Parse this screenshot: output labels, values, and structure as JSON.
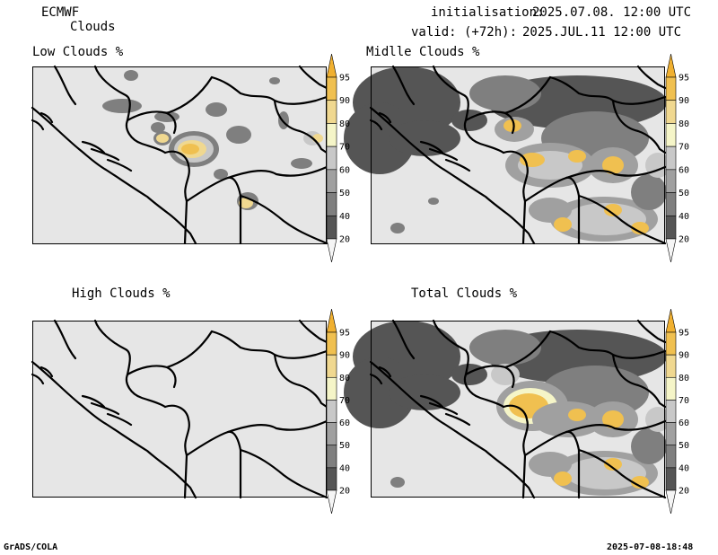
{
  "header": {
    "model": "ECMWF",
    "product": "Clouds",
    "init_label": "initialisation:",
    "init_value": "2025.07.08. 12:00 UTC",
    "valid_label": "valid: (+72h):",
    "valid_value": "2025.JUL.11 12:00 UTC"
  },
  "footer": {
    "software": "GrADS/COLA",
    "timestamp": "2025-07-08-18:48"
  },
  "colorbar": {
    "levels": [
      "20",
      "40",
      "50",
      "60",
      "70",
      "80",
      "90",
      "95"
    ],
    "colors": {
      "lt20": "#e6e6e6",
      "b20_40": "#555555",
      "b40_50": "#7f7f7f",
      "b50_60": "#a0a0a0",
      "b60_70": "#c8c8c8",
      "b70_80": "#f5f5c8",
      "b80_90": "#f0d890",
      "b90_95": "#f0c050",
      "gt95": "#f0b030"
    }
  },
  "panels": [
    {
      "id": "low",
      "title": "Low Clouds %"
    },
    {
      "id": "middle",
      "title": "Midlle Clouds %"
    },
    {
      "id": "high",
      "title": "High Clouds %"
    },
    {
      "id": "total",
      "title": "Total Clouds %"
    }
  ]
}
